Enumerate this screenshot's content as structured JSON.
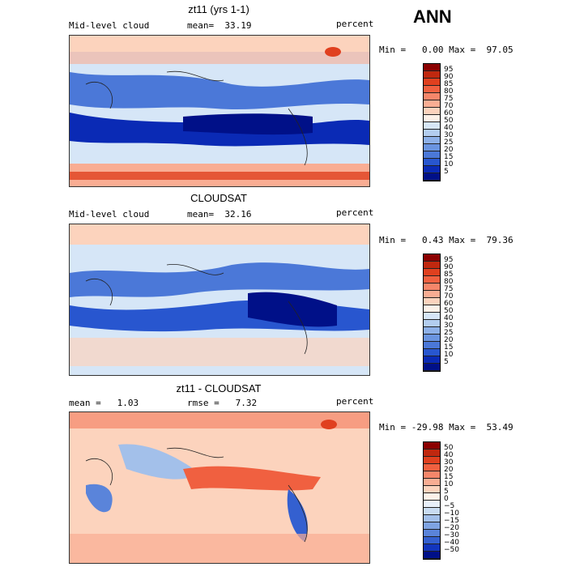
{
  "season": "ANN",
  "panels": [
    {
      "title": "zt11 (yrs 1-1)",
      "left_label": "Mid-level cloud",
      "mid_label": "mean=  33.19",
      "units": "percent",
      "minmax": "Min =   0.00 Max =  97.05"
    },
    {
      "title": "CLOUDSAT",
      "left_label": "Mid-level cloud",
      "mid_label": "mean=  32.16",
      "units": "percent",
      "minmax": "Min =   0.43 Max =  79.36"
    },
    {
      "title": "zt11 - CLOUDSAT",
      "left_label": "mean =   1.03",
      "mid_label": "rmse =   7.32",
      "units": "percent",
      "minmax": "Min = -29.98 Max =  53.49"
    }
  ],
  "colorbars": {
    "abs_levels": [
      "95",
      "90",
      "85",
      "80",
      "75",
      "70",
      "60",
      "50",
      "40",
      "30",
      "25",
      "20",
      "15",
      "10",
      "5"
    ],
    "abs_colors": [
      "#8b0000",
      "#c0280f",
      "#e0401f",
      "#f06040",
      "#f5866a",
      "#f9ad93",
      "#fcd3bd",
      "#fdf1e8",
      "#d6e6f7",
      "#b3cdef",
      "#8db0e8",
      "#6a94e0",
      "#4b78d8",
      "#2856cf",
      "#0a2ab5",
      "#001088"
    ],
    "diff_levels": [
      "50",
      "40",
      "30",
      "20",
      "15",
      "10",
      "5",
      "0",
      "−5",
      "−10",
      "−15",
      "−20",
      "−30",
      "−40",
      "−50"
    ],
    "diff_colors": [
      "#8b0000",
      "#c0280f",
      "#e0401f",
      "#f06040",
      "#f5866a",
      "#f9ad93",
      "#fcd3bd",
      "#fdf1e8",
      "#e8f0fa",
      "#c9dcf2",
      "#a3c0ea",
      "#7ea3e2",
      "#5a84da",
      "#3460d0",
      "#1235bd",
      "#001088"
    ]
  }
}
